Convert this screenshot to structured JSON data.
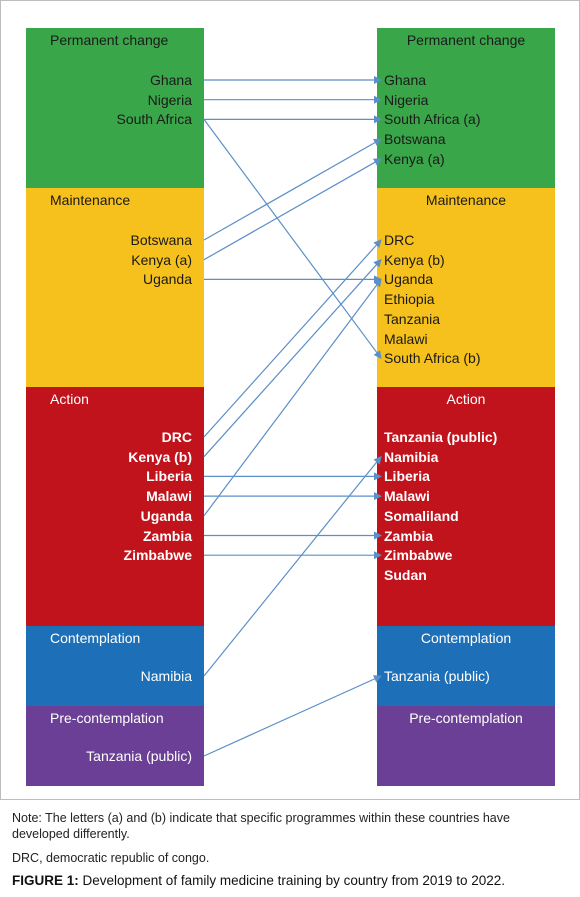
{
  "left_stages": [
    {
      "title": "Permanent change",
      "color": "#3aa64a",
      "text_color": "#1a1a1a",
      "bold": false,
      "items": [
        "Ghana",
        "Nigeria",
        "South Africa"
      ]
    },
    {
      "title": "Maintenance",
      "color": "#f7c11d",
      "text_color": "#1a1a1a",
      "bold": false,
      "items": [
        "Botswana",
        "Kenya (a)",
        "Uganda"
      ]
    },
    {
      "title": "Action",
      "color": "#c0131b",
      "text_color": "#ffffff",
      "bold": true,
      "items": [
        "DRC",
        "Kenya (b)",
        "Liberia",
        "Malawi",
        "Uganda",
        "Zambia",
        "Zimbabwe"
      ]
    },
    {
      "title": "Contemplation",
      "color": "#1d70b7",
      "text_color": "#ffffff",
      "bold": false,
      "items": [
        "Namibia"
      ]
    },
    {
      "title": "Pre-contemplation",
      "color": "#6a3f95",
      "text_color": "#ffffff",
      "bold": false,
      "items": [
        "Tanzania (public)"
      ]
    }
  ],
  "right_stages": [
    {
      "title": "Permanent change",
      "color": "#3aa64a",
      "text_color": "#1a1a1a",
      "bold": false,
      "items": [
        "Ghana",
        "Nigeria",
        "South Africa (a)",
        "Botswana",
        "Kenya (a)"
      ]
    },
    {
      "title": "Maintenance",
      "color": "#f7c11d",
      "text_color": "#1a1a1a",
      "bold": false,
      "items": [
        "DRC",
        "Kenya (b)",
        "Uganda",
        "Ethiopia",
        "Tanzania",
        "Malawi",
        "South Africa (b)"
      ]
    },
    {
      "title": "Action",
      "color": "#c0131b",
      "text_color": "#ffffff",
      "bold": true,
      "items": [
        "Tanzania (public)",
        "Namibia",
        "Liberia",
        "Malawi",
        "Somaliland",
        "Zambia",
        "Zimbabwe",
        "Sudan"
      ]
    },
    {
      "title": "Contemplation",
      "color": "#1d70b7",
      "text_color": "#ffffff",
      "bold": false,
      "items": [
        "Tanzania (public)"
      ]
    },
    {
      "title": "Pre-contemplation",
      "color": "#6a3f95",
      "text_color": "#ffffff",
      "bold": false,
      "items": []
    }
  ],
  "connections": [
    {
      "from": [
        0,
        0
      ],
      "to": [
        0,
        0
      ]
    },
    {
      "from": [
        0,
        1
      ],
      "to": [
        0,
        1
      ]
    },
    {
      "from": [
        0,
        2
      ],
      "to": [
        0,
        2
      ]
    },
    {
      "from": [
        0,
        2
      ],
      "to": [
        1,
        6
      ]
    },
    {
      "from": [
        1,
        0
      ],
      "to": [
        0,
        3
      ]
    },
    {
      "from": [
        1,
        1
      ],
      "to": [
        0,
        4
      ]
    },
    {
      "from": [
        1,
        2
      ],
      "to": [
        1,
        2
      ]
    },
    {
      "from": [
        2,
        0
      ],
      "to": [
        1,
        0
      ]
    },
    {
      "from": [
        2,
        1
      ],
      "to": [
        1,
        1
      ]
    },
    {
      "from": [
        2,
        2
      ],
      "to": [
        2,
        2
      ]
    },
    {
      "from": [
        2,
        3
      ],
      "to": [
        2,
        3
      ]
    },
    {
      "from": [
        2,
        4
      ],
      "to": [
        1,
        2
      ]
    },
    {
      "from": [
        2,
        5
      ],
      "to": [
        2,
        5
      ]
    },
    {
      "from": [
        2,
        6
      ],
      "to": [
        2,
        6
      ]
    },
    {
      "from": [
        3,
        0
      ],
      "to": [
        2,
        1
      ]
    },
    {
      "from": [
        4,
        0
      ],
      "to": [
        3,
        0
      ]
    }
  ],
  "arrow_color": "#5b8fc7",
  "note": "Note: The letters (a) and (b) indicate that specific programmes within these countries have developed differently.",
  "abbreviation": "DRC, democratic republic of congo.",
  "caption": {
    "label": "FIGURE 1:",
    "text": " Development of family medicine training by country from 2019 to 2022."
  }
}
